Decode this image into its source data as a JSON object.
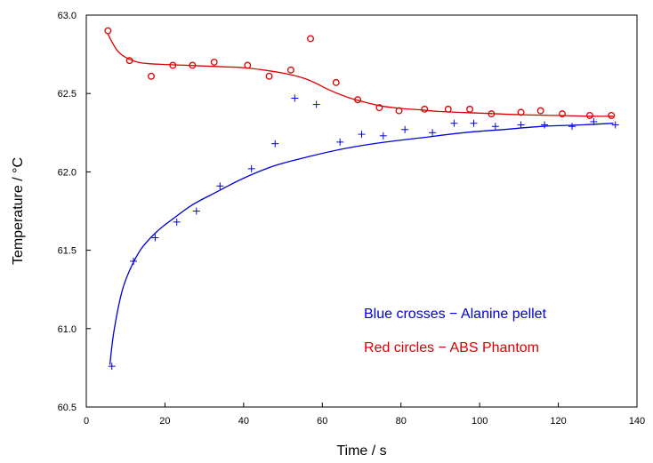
{
  "chart_data": {
    "type": "scatter",
    "xlabel": "Time / s",
    "ylabel": "Temperature / °C",
    "xlim": [
      0,
      140
    ],
    "ylim": [
      60.5,
      63.0
    ],
    "xticks": [
      "0",
      "20",
      "40",
      "60",
      "80",
      "100",
      "120",
      "140"
    ],
    "yticks": [
      "60.5",
      "61.0",
      "61.5",
      "62.0",
      "62.5",
      "63.0"
    ],
    "grid": false,
    "annotations": [
      {
        "text": "Blue crosses − Alanine pellet",
        "color": "#0000dd"
      },
      {
        "text": "Red circles − ABS Phantom",
        "color": "#dd0000"
      }
    ],
    "series": [
      {
        "marker": "cross",
        "color": "#0000dd",
        "x": [
          6.5,
          12,
          17.5,
          23,
          28,
          34,
          42,
          48,
          53,
          58.5,
          64.5,
          70,
          75.5,
          81,
          88,
          93.5,
          98.5,
          104,
          110.5,
          116.5,
          123.5,
          129,
          134.5
        ],
        "y": [
          60.76,
          61.43,
          61.58,
          61.68,
          61.75,
          61.91,
          62.02,
          62.18,
          62.47,
          62.43,
          62.19,
          62.24,
          62.23,
          62.27,
          62.25,
          62.31,
          62.31,
          62.29,
          62.3,
          62.3,
          62.29,
          62.32,
          62.3
        ],
        "fit_x": [
          6,
          7,
          9,
          11,
          14,
          18,
          22,
          27,
          33,
          40,
          48,
          57,
          66,
          76,
          86,
          96,
          106,
          116,
          126,
          134
        ],
        "fit_y": [
          60.77,
          60.98,
          61.23,
          61.37,
          61.51,
          61.62,
          61.7,
          61.79,
          61.87,
          61.96,
          62.04,
          62.1,
          62.15,
          62.19,
          62.22,
          62.25,
          62.27,
          62.29,
          62.3,
          62.31
        ]
      },
      {
        "marker": "circle",
        "color": "#dd0000",
        "x": [
          5.5,
          11,
          16.5,
          22,
          27,
          32.5,
          41,
          46.5,
          52,
          57,
          63.5,
          69,
          74.5,
          79.5,
          86,
          92,
          97.5,
          103,
          110.5,
          115.5,
          121,
          128,
          133.5
        ],
        "y": [
          62.9,
          62.71,
          62.61,
          62.68,
          62.68,
          62.7,
          62.68,
          62.61,
          62.65,
          62.85,
          62.57,
          62.46,
          62.41,
          62.39,
          62.4,
          62.4,
          62.4,
          62.37,
          62.38,
          62.39,
          62.37,
          62.36,
          62.36
        ],
        "fit_x": [
          5.5,
          6.5,
          8,
          10,
          13,
          16,
          20,
          25,
          30,
          35,
          40,
          45,
          50,
          55,
          58,
          62,
          66,
          70,
          75,
          80,
          85,
          90,
          100,
          110,
          120,
          128,
          134
        ],
        "fit_y": [
          62.88,
          62.83,
          62.77,
          62.73,
          62.7,
          62.69,
          62.685,
          62.68,
          62.675,
          62.67,
          62.665,
          62.65,
          62.63,
          62.6,
          62.57,
          62.52,
          62.48,
          62.45,
          62.42,
          62.405,
          62.395,
          62.385,
          62.375,
          62.365,
          62.36,
          62.355,
          62.355
        ]
      }
    ]
  }
}
